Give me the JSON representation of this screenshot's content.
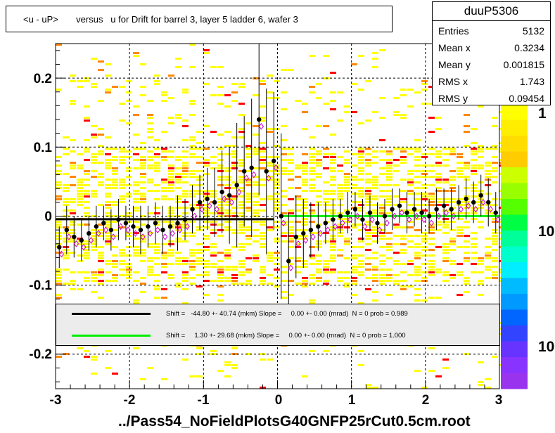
{
  "title": "<u - uP>       versus   u for Drift for barrel 3, layer 5 ladder 6, wafer 3",
  "stats": {
    "name": "duuP5306",
    "rows": [
      {
        "key": "Entries",
        "value": "5132"
      },
      {
        "key": "Mean x",
        "value": "0.3234"
      },
      {
        "key": "Mean y",
        "value": "0.001815"
      },
      {
        "key": "RMS x",
        "value": "1.743"
      },
      {
        "key": "RMS y",
        "value": "0.09454"
      }
    ]
  },
  "legend": [
    {
      "color": "#000000",
      "text": "Shift =   -44.80 +- 40.74 (mkm) Slope =     0.00 +- 0.00 (mrad)  N = 0 prob = 0.989"
    },
    {
      "color": "#00ee00",
      "text": "Shift =     1.30 +- 29.68 (mkm) Slope =     0.00 +- 0.00 (mrad)  N = 0 prob = 1.000"
    }
  ],
  "colorbar": {
    "labels": [
      "1",
      "10",
      "10"
    ]
  },
  "filename": "../Pass54_NoFieldPlotsG40GNFP25rCut0.5cm.root",
  "chart_data": {
    "type": "scatter",
    "xlim": [
      -3,
      3
    ],
    "ylim": [
      -0.25,
      0.25
    ],
    "xticks": [
      "-3",
      "-2",
      "-1",
      "0",
      "1",
      "2",
      "3"
    ],
    "yticks": [
      "0.2",
      "0.1",
      "0",
      "-0.1",
      "-0.2"
    ],
    "grid": true,
    "profile_mean_points": [
      [
        -2.95,
        -0.045
      ],
      [
        -2.85,
        -0.02
      ],
      [
        -2.75,
        -0.03
      ],
      [
        -2.65,
        -0.035
      ],
      [
        -2.55,
        -0.025
      ],
      [
        -2.45,
        -0.015
      ],
      [
        -2.35,
        -0.01
      ],
      [
        -2.25,
        -0.02
      ],
      [
        -2.15,
        -0.005
      ],
      [
        -2.05,
        -0.01
      ],
      [
        -1.95,
        -0.015
      ],
      [
        -1.85,
        -0.02
      ],
      [
        -1.75,
        -0.015
      ],
      [
        -1.65,
        -0.01
      ],
      [
        -1.55,
        -0.02
      ],
      [
        -1.45,
        -0.015
      ],
      [
        -1.35,
        -0.01
      ],
      [
        -1.25,
        -0.005
      ],
      [
        -1.15,
        0.01
      ],
      [
        -1.05,
        0.02
      ],
      [
        -0.95,
        0.025
      ],
      [
        -0.85,
        0.02
      ],
      [
        -0.75,
        0.035
      ],
      [
        -0.65,
        0.03
      ],
      [
        -0.55,
        0.045
      ],
      [
        -0.45,
        0.065
      ],
      [
        -0.35,
        0.07
      ],
      [
        -0.25,
        0.14
      ],
      [
        -0.15,
        0.065
      ],
      [
        -0.05,
        0.08
      ],
      [
        0.05,
        0.0
      ],
      [
        0.15,
        -0.065
      ],
      [
        0.25,
        -0.03
      ],
      [
        0.35,
        -0.025
      ],
      [
        0.45,
        -0.02
      ],
      [
        0.55,
        -0.015
      ],
      [
        0.65,
        -0.01
      ],
      [
        0.75,
        -0.005
      ],
      [
        0.85,
        0.0
      ],
      [
        0.95,
        0.005
      ],
      [
        1.05,
        0.01
      ],
      [
        1.15,
        -0.005
      ],
      [
        1.25,
        0.005
      ],
      [
        1.35,
        -0.01
      ],
      [
        1.45,
        0.0
      ],
      [
        1.55,
        0.01
      ],
      [
        1.65,
        0.015
      ],
      [
        1.75,
        0.005
      ],
      [
        1.85,
        0.01
      ],
      [
        1.95,
        0.005
      ],
      [
        2.05,
        0.0
      ],
      [
        2.15,
        0.01
      ],
      [
        2.25,
        0.015
      ],
      [
        2.35,
        0.01
      ],
      [
        2.45,
        0.02
      ],
      [
        2.55,
        0.025
      ],
      [
        2.65,
        0.02
      ],
      [
        2.75,
        0.03
      ],
      [
        2.85,
        0.02
      ],
      [
        2.95,
        0.005
      ]
    ],
    "profile_errors": [
      0.03,
      0.035,
      0.03,
      0.03,
      0.025,
      0.03,
      0.025,
      0.03,
      0.03,
      0.025,
      0.03,
      0.035,
      0.03,
      0.03,
      0.035,
      0.03,
      0.04,
      0.03,
      0.035,
      0.04,
      0.045,
      0.05,
      0.06,
      0.07,
      0.09,
      0.08,
      0.1,
      0.11,
      0.12,
      0.1,
      0.12,
      0.07,
      0.06,
      0.05,
      0.04,
      0.035,
      0.03,
      0.03,
      0.025,
      0.03,
      0.025,
      0.03,
      0.025,
      0.03,
      0.025,
      0.03,
      0.025,
      0.03,
      0.025,
      0.03,
      0.025,
      0.03,
      0.025,
      0.03,
      0.025,
      0.03,
      0.03,
      0.03,
      0.035,
      0.03
    ],
    "fit_lines": [
      {
        "color": "#000000",
        "x": [
          -3.0,
          -0.05
        ],
        "y": [
          -0.0045,
          -0.0045
        ]
      },
      {
        "color": "#00ee00",
        "x": [
          0.05,
          3.0
        ],
        "y": [
          0.0001,
          0.0001
        ]
      }
    ],
    "colors": {
      "frame": "#000000",
      "grid": "#000000",
      "low": "#ffff00",
      "mid": "#ff8800",
      "high": "#ff0000",
      "markers": "#cc00cc"
    }
  }
}
